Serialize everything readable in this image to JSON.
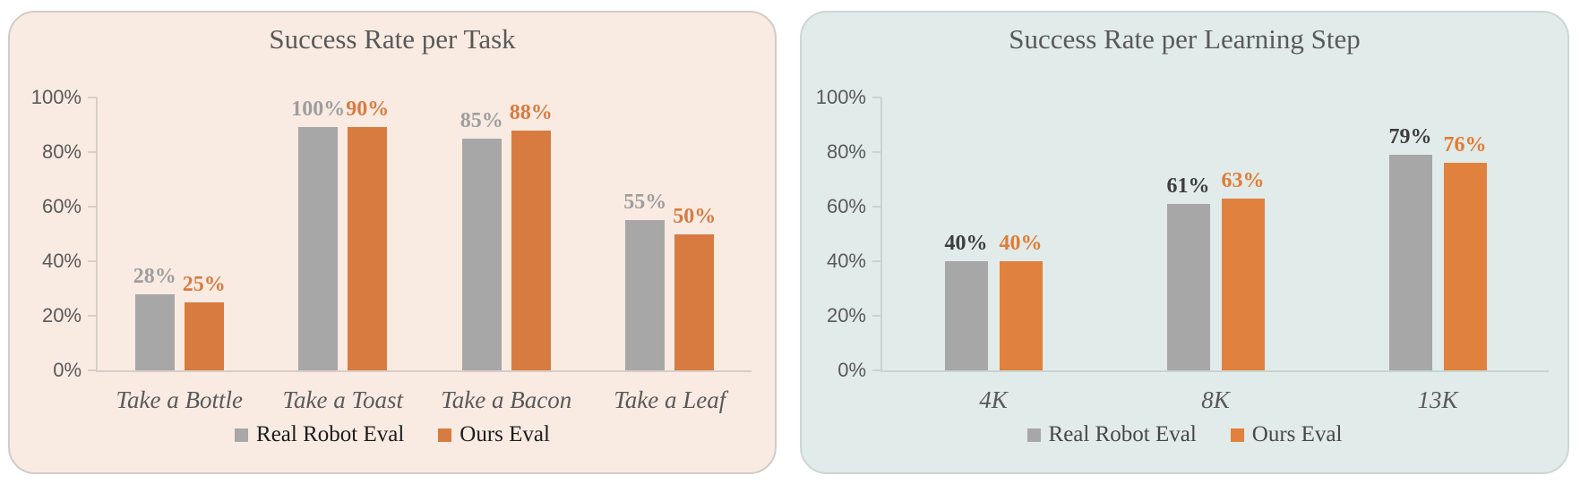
{
  "page": {
    "background": "#ffffff"
  },
  "chart_data": [
    {
      "type": "bar",
      "title": "Success Rate per Task",
      "categories": [
        "Take a Bottle",
        "Take a Toast",
        "Take a Bacon",
        "Take a Leaf"
      ],
      "series": [
        {
          "name": "Real Robot Eval",
          "values": [
            28,
            100,
            85,
            55
          ],
          "data_labels": [
            "28%",
            "100%",
            "85%",
            "55%"
          ],
          "color": "#a7a7a7",
          "label_color": "#9e9e9e"
        },
        {
          "name": "Ours Eval",
          "values": [
            25,
            90,
            88,
            50
          ],
          "data_labels": [
            "25%",
            "90%",
            "88%",
            "50%"
          ],
          "color": "#d87b41",
          "label_color": "#d87b41"
        }
      ],
      "ylim": [
        0,
        100
      ],
      "yticks": [
        "0%",
        "20%",
        "40%",
        "60%",
        "80%",
        "100%"
      ],
      "grid": false,
      "legend_position": "bottom",
      "colors": {
        "panel_background": "#f9ebe2",
        "panel_border": "#d2ccc7",
        "axis": "#d8cec7",
        "text": "#595959",
        "legend_text": "#1c1c1c"
      }
    },
    {
      "type": "bar",
      "title": "Success Rate per Learning Step",
      "categories": [
        "4K",
        "8K",
        "13K"
      ],
      "series": [
        {
          "name": "Real Robot Eval",
          "values": [
            40,
            61,
            79
          ],
          "data_labels": [
            "40%",
            "61%",
            "79%"
          ],
          "color": "#a7a7a7",
          "label_color": "#3d3d3d"
        },
        {
          "name": "Ours Eval",
          "values": [
            40,
            63,
            76
          ],
          "data_labels": [
            "40%",
            "63%",
            "76%"
          ],
          "color": "#e0813e",
          "label_color": "#e07c36"
        }
      ],
      "ylim": [
        0,
        100
      ],
      "yticks": [
        "0%",
        "20%",
        "40%",
        "60%",
        "80%",
        "100%"
      ],
      "grid": false,
      "legend_position": "bottom",
      "colors": {
        "panel_background": "#e1ebe9",
        "panel_border": "#ccd7d5",
        "axis": "#c8d4d1",
        "text": "#595959",
        "legend_text": "#474747"
      }
    }
  ]
}
